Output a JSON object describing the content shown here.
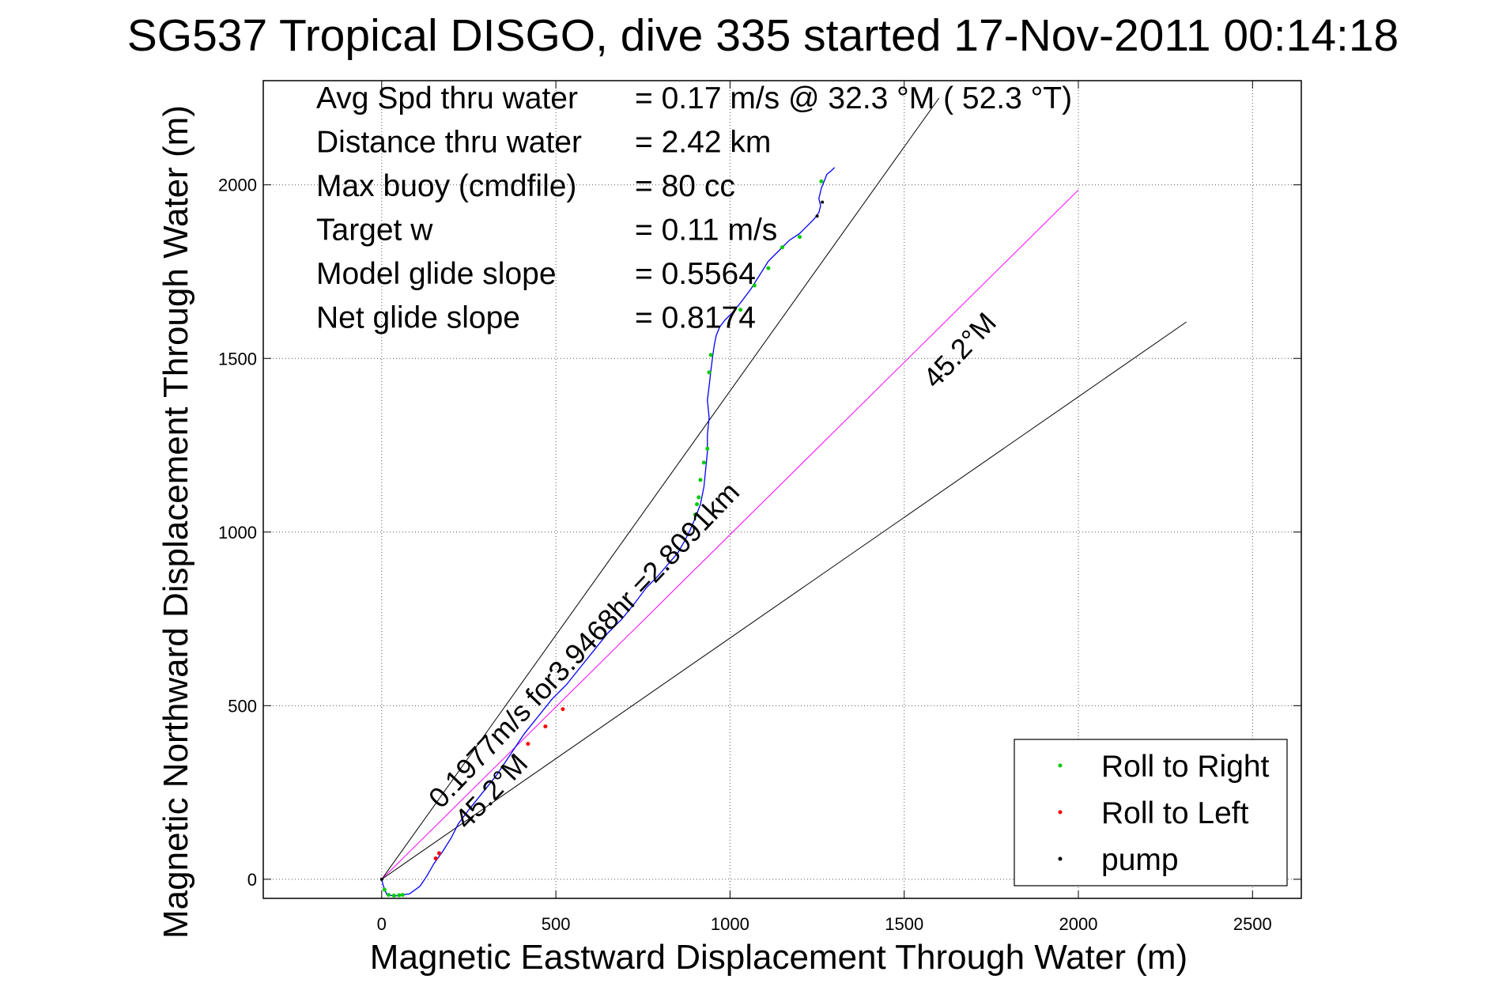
{
  "chart_data": {
    "type": "line",
    "title": "SG537 Tropical DISGO, dive 335 started 17-Nov-2011 00:14:18",
    "xlabel": "Magnetic Eastward Displacement Through Water (m)",
    "ylabel": "Magnetic Northward Displacement Through Water (m)",
    "xlim": [
      -340,
      2640
    ],
    "ylim": [
      -55,
      2300
    ],
    "x_ticks": [
      0,
      500,
      1000,
      1500,
      2000,
      2500
    ],
    "y_ticks": [
      0,
      500,
      1000,
      1500,
      2000
    ],
    "grid": true,
    "legend_position": "bottom-right",
    "legend": [
      {
        "label": "Roll to Right",
        "color": "#00cc00"
      },
      {
        "label": "Roll to Left",
        "color": "#ff0000"
      },
      {
        "label": "pump",
        "color": "#000000"
      }
    ],
    "info_lines": [
      {
        "label": "Avg Spd thru water",
        "value": "=  0.17 m/s @  32.3 °M ( 52.3 °T)"
      },
      {
        "label": "Distance thru water",
        "value": "=  2.42 km"
      },
      {
        "label": "Max buoy (cmdfile)",
        "value": "= 80 cc"
      },
      {
        "label": "Target w",
        "value": "= 0.11 m/s"
      },
      {
        "label": "Model glide slope",
        "value": "= 0.5564"
      },
      {
        "label": "Net glide slope",
        "value": "= 0.8174"
      }
    ],
    "annotations": {
      "mean_line_label": "0.1977m/s for3.9468hr =2.8091km",
      "heading_label_near": "45.2°M",
      "heading_label_far": "45.2°M"
    },
    "reference_lines": [
      {
        "name": "black-upper",
        "color": "#000000",
        "x": [
          0,
          1600
        ],
        "y": [
          0,
          2250
        ]
      },
      {
        "name": "magenta-mean",
        "color": "#ff00ff",
        "x": [
          0,
          2000
        ],
        "y": [
          0,
          1985
        ]
      },
      {
        "name": "black-lower",
        "color": "#000000",
        "x": [
          0,
          2310
        ],
        "y": [
          0,
          1605
        ]
      }
    ],
    "series": [
      {
        "color": "#0000ff",
        "x": [
          0,
          5,
          15,
          40,
          80,
          110,
          130,
          150,
          175,
          200,
          220,
          250,
          290,
          330,
          370,
          410,
          450,
          490,
          530,
          570,
          610,
          650,
          690,
          730,
          760,
          790,
          820,
          850,
          870,
          885,
          900,
          915,
          925,
          930,
          935,
          935,
          940,
          935,
          940,
          945,
          950,
          955,
          960,
          970,
          985,
          1005,
          1030,
          1060,
          1085,
          1110,
          1140,
          1170,
          1200,
          1220,
          1240,
          1255,
          1260,
          1255,
          1262,
          1270,
          1278,
          1290,
          1300
        ],
        "y": [
          0,
          -20,
          -45,
          -48,
          -42,
          -20,
          10,
          45,
          80,
          120,
          160,
          200,
          250,
          300,
          360,
          420,
          470,
          520,
          560,
          610,
          660,
          710,
          750,
          800,
          840,
          870,
          905,
          940,
          975,
          1005,
          1040,
          1080,
          1130,
          1180,
          1230,
          1280,
          1330,
          1380,
          1420,
          1465,
          1505,
          1540,
          1565,
          1590,
          1610,
          1630,
          1660,
          1700,
          1740,
          1780,
          1810,
          1840,
          1860,
          1880,
          1900,
          1920,
          1940,
          1960,
          1990,
          2010,
          2030,
          2040,
          2050
        ]
      }
    ],
    "roll_right_points": {
      "color": "#00cc00",
      "x": [
        8,
        20,
        35,
        50,
        60,
        900,
        905,
        910,
        915,
        925,
        935,
        940,
        945,
        1030,
        1070,
        1110,
        1150,
        1200,
        1262
      ],
      "y": [
        -30,
        -45,
        -47,
        -46,
        -45,
        1050,
        1080,
        1100,
        1150,
        1200,
        1240,
        1460,
        1510,
        1640,
        1710,
        1760,
        1820,
        1850,
        2010
      ]
    },
    "roll_left_points": {
      "color": "#ff0000",
      "x": [
        155,
        165,
        420,
        470,
        520
      ],
      "y": [
        60,
        75,
        390,
        440,
        490
      ]
    },
    "pump_points": {
      "color": "#000000",
      "x": [
        0,
        870,
        1250,
        1265
      ],
      "y": [
        0,
        1000,
        1910,
        1950
      ]
    }
  }
}
